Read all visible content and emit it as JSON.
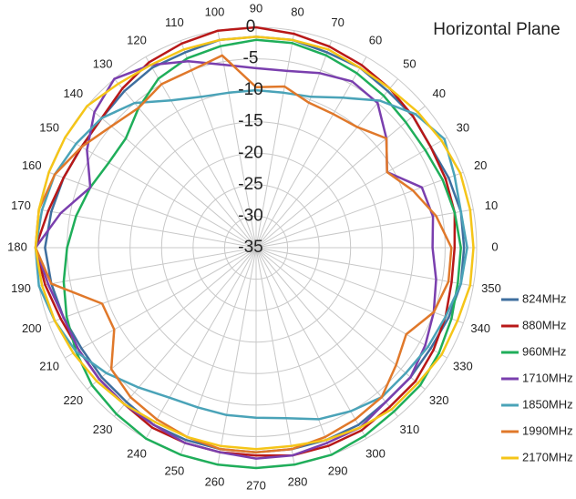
{
  "chart_data": {
    "type": "polar-line",
    "title": "Horizontal Plane",
    "x": [
      0,
      10,
      20,
      30,
      40,
      50,
      60,
      70,
      80,
      90,
      100,
      110,
      120,
      130,
      140,
      150,
      160,
      170,
      180,
      190,
      200,
      210,
      220,
      230,
      240,
      250,
      260,
      270,
      280,
      290,
      300,
      310,
      320,
      330,
      340,
      350
    ],
    "ylim": [
      -35,
      0
    ],
    "yticks": [
      0,
      -5,
      -10,
      -15,
      -20,
      -25,
      -30,
      -35
    ],
    "grid": true,
    "legend": "right",
    "series": [
      {
        "name": "824MHz",
        "color": "#3f6f9f",
        "values": [
          -2,
          -2,
          -2.5,
          -3,
          -2.5,
          -2.5,
          -2,
          -2,
          -1.5,
          -1.5,
          -1.5,
          -2,
          -2,
          -2.5,
          -3,
          -3,
          -2.5,
          -2,
          -1.5,
          -2,
          -2.5,
          -3,
          -3,
          -3,
          -2.5,
          -2.5,
          -2.5,
          -2.5,
          -2.5,
          -2.5,
          -2.5,
          -3,
          -3,
          -3,
          -2.5,
          -2
        ]
      },
      {
        "name": "880MHz",
        "color": "#b81818",
        "values": [
          -3.5,
          -3,
          -3,
          -3,
          -2.5,
          -2,
          -1.5,
          -1,
          -0.5,
          0,
          0,
          -0.5,
          -1,
          -2,
          -3,
          -3,
          -2.5,
          -1.5,
          0,
          -1,
          -2,
          -2.5,
          -2.5,
          -2.5,
          -2,
          -2,
          -2,
          -2,
          -1.5,
          -1.5,
          -1.5,
          -2,
          -2,
          -2.5,
          -3,
          -3.5
        ]
      },
      {
        "name": "960MHz",
        "color": "#1fae5a",
        "values": [
          -2.5,
          -3,
          -3.5,
          -4,
          -4,
          -3.5,
          -3,
          -2.5,
          -2,
          -2,
          -2.5,
          -3,
          -4,
          -6,
          -8,
          -8,
          -7,
          -6,
          -5,
          -4,
          -3,
          -2,
          -1,
          -0.5,
          0,
          0,
          0,
          0,
          0,
          0,
          -0.5,
          -1,
          -1,
          -1.5,
          -2,
          -2.5
        ]
      },
      {
        "name": "1710MHz",
        "color": "#7a3fae",
        "values": [
          -7,
          -6.5,
          -7,
          -11,
          -8,
          -5,
          -4.5,
          -5.5,
          -6.5,
          -6.5,
          -5.5,
          -3.5,
          -1.5,
          0,
          -1.5,
          -4,
          -7,
          -3.5,
          0,
          -1.5,
          -2.5,
          -2.5,
          -2.5,
          -2.5,
          -2.5,
          -2,
          -2,
          -1.5,
          -1.5,
          -2,
          -2,
          -3,
          -3,
          -4,
          -5,
          -6
        ]
      },
      {
        "name": "1850MHz",
        "color": "#4aa3b8",
        "values": [
          -1.5,
          -2,
          -1.5,
          -0.5,
          -2,
          -4.5,
          -7.5,
          -9.5,
          -10,
          -10,
          -10,
          -9.5,
          -8,
          -5,
          -3,
          -2,
          -1,
          -0.5,
          0,
          0,
          -1,
          -2,
          -4,
          -6,
          -7.5,
          -8,
          -8,
          -8,
          -7.5,
          -6,
          -5,
          -4,
          -4,
          -3.5,
          -3,
          -2
        ]
      },
      {
        "name": "1990MHz",
        "color": "#e0782a",
        "values": [
          -4,
          -6,
          -8.5,
          -11,
          -8,
          -10,
          -10.5,
          -10.5,
          -9,
          -9.5,
          -4,
          -5,
          -5,
          -6,
          -5,
          -3,
          -1,
          0,
          0,
          -2,
          -9,
          -9,
          -5,
          -4,
          -3.5,
          -3,
          -2.5,
          -2.5,
          -2.5,
          -3,
          -3.5,
          -4,
          -6,
          -7.5,
          -5,
          -4
        ]
      },
      {
        "name": "2170MHz",
        "color": "#f5c518",
        "values": [
          -0.5,
          -0.5,
          -0.5,
          -1,
          -1.5,
          -2,
          -2,
          -1.5,
          -1.5,
          -1.5,
          -1.5,
          -1.5,
          -1.5,
          -1,
          0,
          0,
          0,
          0,
          0,
          -0.5,
          -1,
          -1.5,
          -2,
          -2.5,
          -3,
          -3,
          -3,
          -3,
          -3,
          -2.5,
          -2,
          -1.5,
          -1.5,
          -1,
          -1,
          -0.5
        ]
      }
    ]
  }
}
